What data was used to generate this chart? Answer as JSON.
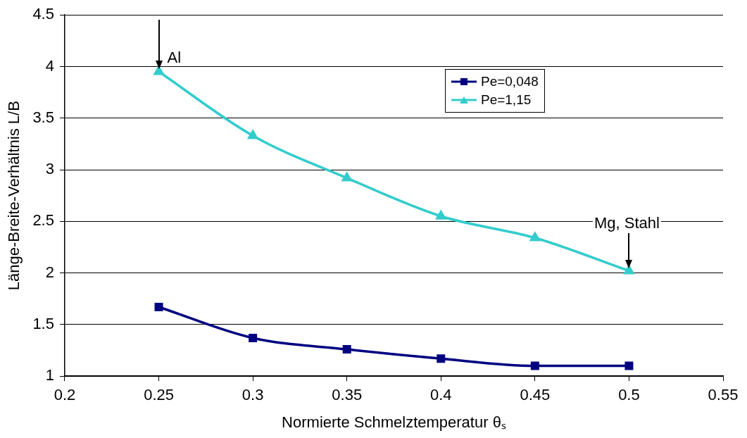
{
  "chart_data": {
    "type": "line",
    "xlabel": "Normierte Schmelztemperatur θₛ",
    "ylabel": "Länge-Breite-Verhältnis L/B",
    "x": [
      0.25,
      0.3,
      0.35,
      0.4,
      0.45,
      0.5
    ],
    "series": [
      {
        "name": "Pe=0,048",
        "color": "#000080",
        "marker": "square",
        "values": [
          1.67,
          1.37,
          1.26,
          1.17,
          1.1,
          1.1
        ]
      },
      {
        "name": "Pe=1,15",
        "color": "#33cccc",
        "marker": "triangle",
        "values": [
          3.95,
          3.33,
          2.92,
          2.55,
          2.34,
          2.02
        ]
      }
    ],
    "xlim": [
      0.2,
      0.55
    ],
    "xticks": [
      0.2,
      0.25,
      0.3,
      0.35,
      0.4,
      0.45,
      0.5,
      0.55
    ],
    "ylim": [
      1,
      4.5
    ],
    "yticks": [
      1,
      1.5,
      2,
      2.5,
      3,
      3.5,
      4,
      4.5
    ],
    "grid": "y",
    "legend": "top right",
    "line_style": "solid",
    "annotations": [
      {
        "text": "Al",
        "x": 0.25,
        "y": 3.95
      },
      {
        "text": "Mg, Stahl",
        "x": 0.5,
        "y": 2.02
      }
    ]
  }
}
